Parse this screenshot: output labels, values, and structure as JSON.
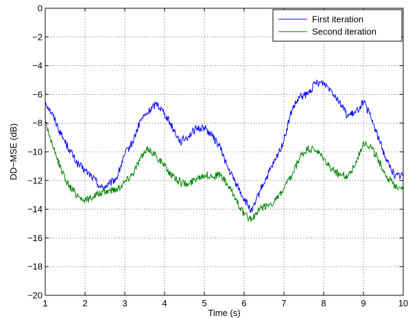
{
  "chart_data": {
    "type": "line",
    "title": "",
    "xlabel": "Time (s)",
    "ylabel": "DD−MSE (dB)",
    "xlim": [
      1,
      10
    ],
    "ylim": [
      -20,
      0
    ],
    "xticks": [
      1,
      2,
      3,
      4,
      5,
      6,
      7,
      8,
      9,
      10
    ],
    "yticks": [
      0,
      -2,
      -4,
      -6,
      -8,
      -10,
      -12,
      -14,
      -16,
      -18,
      -20
    ],
    "xtick_labels": [
      "1",
      "2",
      "3",
      "4",
      "5",
      "6",
      "7",
      "8",
      "9",
      "10"
    ],
    "ytick_labels": [
      "0",
      "−2",
      "−4",
      "−6",
      "−8",
      "−10",
      "−12",
      "−14",
      "−16",
      "−18",
      "−20"
    ],
    "grid": true,
    "legend_position": "top-right",
    "series": [
      {
        "name": "First iteration",
        "color": "#0000ff",
        "x": [
          1.0,
          1.2,
          1.4,
          1.6,
          1.8,
          2.0,
          2.2,
          2.4,
          2.6,
          2.8,
          3.0,
          3.2,
          3.4,
          3.6,
          3.8,
          4.0,
          4.2,
          4.4,
          4.6,
          4.8,
          5.0,
          5.2,
          5.4,
          5.6,
          5.8,
          6.0,
          6.2,
          6.4,
          6.6,
          6.8,
          7.0,
          7.2,
          7.4,
          7.6,
          7.8,
          8.0,
          8.2,
          8.4,
          8.6,
          8.8,
          9.0,
          9.2,
          9.4,
          9.6,
          9.8,
          10.0
        ],
        "y": [
          -6.5,
          -7.5,
          -8.8,
          -9.8,
          -10.8,
          -11.3,
          -11.8,
          -12.5,
          -12.3,
          -11.8,
          -10.2,
          -9.3,
          -7.8,
          -7.2,
          -6.6,
          -7.3,
          -8.3,
          -9.3,
          -8.9,
          -8.4,
          -8.3,
          -8.9,
          -9.7,
          -11.2,
          -12.2,
          -13.3,
          -14.2,
          -12.7,
          -11.6,
          -10.5,
          -9.2,
          -7.1,
          -6.2,
          -6.0,
          -5.2,
          -5.2,
          -5.7,
          -6.5,
          -7.5,
          -7.3,
          -6.5,
          -7.7,
          -9.2,
          -10.7,
          -11.7,
          -11.6
        ]
      },
      {
        "name": "Second iteration",
        "color": "#008000",
        "x": [
          1.0,
          1.2,
          1.4,
          1.6,
          1.8,
          2.0,
          2.2,
          2.4,
          2.6,
          2.8,
          3.0,
          3.2,
          3.4,
          3.6,
          3.8,
          4.0,
          4.2,
          4.4,
          4.6,
          4.8,
          5.0,
          5.2,
          5.4,
          5.6,
          5.8,
          6.0,
          6.2,
          6.4,
          6.6,
          6.8,
          7.0,
          7.2,
          7.4,
          7.6,
          7.8,
          8.0,
          8.2,
          8.4,
          8.6,
          8.8,
          9.0,
          9.2,
          9.4,
          9.6,
          9.8,
          10.0
        ],
        "y": [
          -7.8,
          -9.8,
          -11.2,
          -12.4,
          -13.0,
          -13.4,
          -13.1,
          -12.9,
          -12.7,
          -12.6,
          -12.1,
          -11.5,
          -10.4,
          -9.8,
          -10.3,
          -11.0,
          -11.7,
          -12.1,
          -12.3,
          -11.8,
          -11.6,
          -11.7,
          -11.6,
          -12.4,
          -13.3,
          -14.4,
          -14.7,
          -14.0,
          -13.7,
          -13.4,
          -12.6,
          -11.7,
          -10.4,
          -9.8,
          -9.9,
          -10.5,
          -11.2,
          -11.6,
          -11.7,
          -10.9,
          -9.3,
          -9.7,
          -10.7,
          -11.8,
          -12.4,
          -12.4
        ]
      }
    ]
  }
}
